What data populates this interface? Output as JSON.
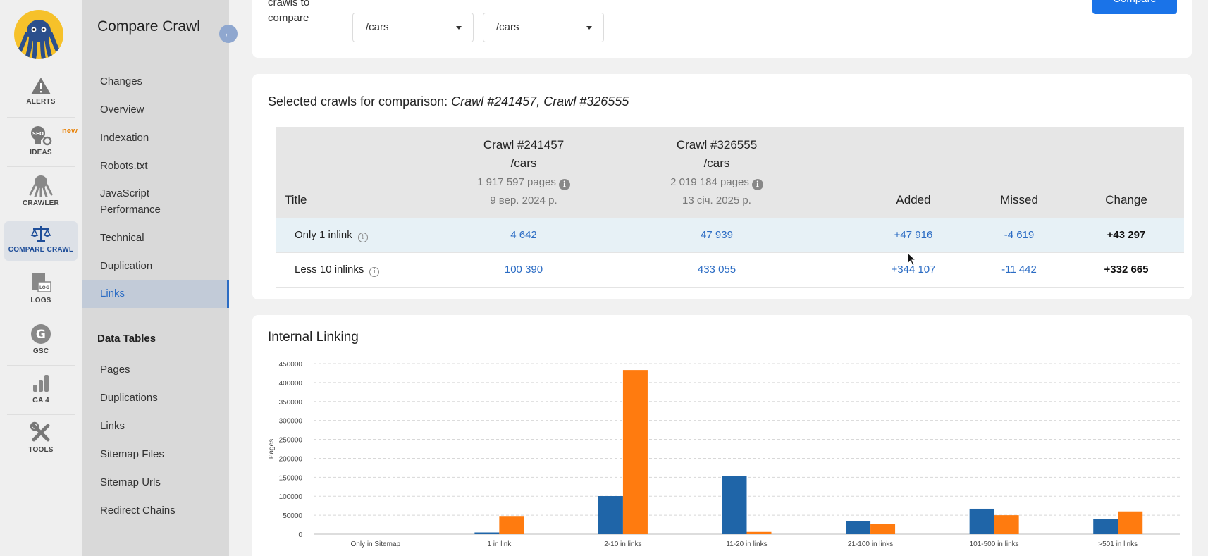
{
  "rail": {
    "items": [
      {
        "label": "ALERTS"
      },
      {
        "label": "IDEAS",
        "badge": "new"
      },
      {
        "label": "CRAWLER"
      },
      {
        "label": "COMPARE CRAWL"
      },
      {
        "label": "LOGS"
      },
      {
        "label": "GSC"
      },
      {
        "label": "GA 4"
      },
      {
        "label": "TOOLS"
      }
    ]
  },
  "sidebar": {
    "title": "Compare Crawl",
    "links": [
      "Changes",
      "Overview",
      "Indexation",
      "Robots.txt",
      "JavaScript Performance",
      "Technical",
      "Duplication",
      "Links"
    ],
    "data_tables_heading": "Data Tables",
    "data_tables": [
      "Pages",
      "Duplications",
      "Links",
      "Sitemap Files",
      "Sitemap Urls",
      "Redirect Chains"
    ]
  },
  "compare_form": {
    "label": "crawls to compare",
    "select_left": "/cars",
    "select_right": "/cars",
    "button": "Compare"
  },
  "selection": {
    "prefix": "Selected crawls for comparison: ",
    "crawls": "Crawl #241457, Crawl #326555"
  },
  "table": {
    "headers": {
      "title": "Title",
      "crawl_a": {
        "name": "Crawl #241457",
        "path": "/cars",
        "pages": "1 917 597 pages",
        "date": "9 вер. 2024 р."
      },
      "crawl_b": {
        "name": "Crawl #326555",
        "path": "/cars",
        "pages": "2 019 184 pages",
        "date": "13 січ. 2025 р."
      },
      "added": "Added",
      "missed": "Missed",
      "change": "Change"
    },
    "rows": [
      {
        "title": "Only 1 inlink",
        "a": "4 642",
        "b": "47 939",
        "added": "+47 916",
        "missed": "-4 619",
        "change": "+43 297"
      },
      {
        "title": "Less 10 inlinks",
        "a": "100 390",
        "b": "433 055",
        "added": "+344 107",
        "missed": "-11 442",
        "change": "+332 665"
      }
    ]
  },
  "chart_data": {
    "type": "bar",
    "title": "Internal Linking",
    "ylabel": "Pages",
    "xlabel": "",
    "ylim": [
      0,
      450000
    ],
    "yticks": [
      0,
      50000,
      100000,
      150000,
      200000,
      250000,
      300000,
      350000,
      400000,
      450000
    ],
    "categories": [
      "Only in Sitemap",
      "1 in link",
      "2-10 in links",
      "11-20 in links",
      "21-100 in links",
      "101-500 in links",
      ">501 in links"
    ],
    "series": [
      {
        "name": "Crawl #241457",
        "color": "#1f65a8",
        "values": [
          0,
          4642,
          100390,
          153000,
          35000,
          67000,
          40000
        ]
      },
      {
        "name": "Crawl #326555",
        "color": "#ff7b0f",
        "values": [
          0,
          47939,
          433055,
          6000,
          27000,
          50000,
          60000
        ]
      }
    ]
  }
}
